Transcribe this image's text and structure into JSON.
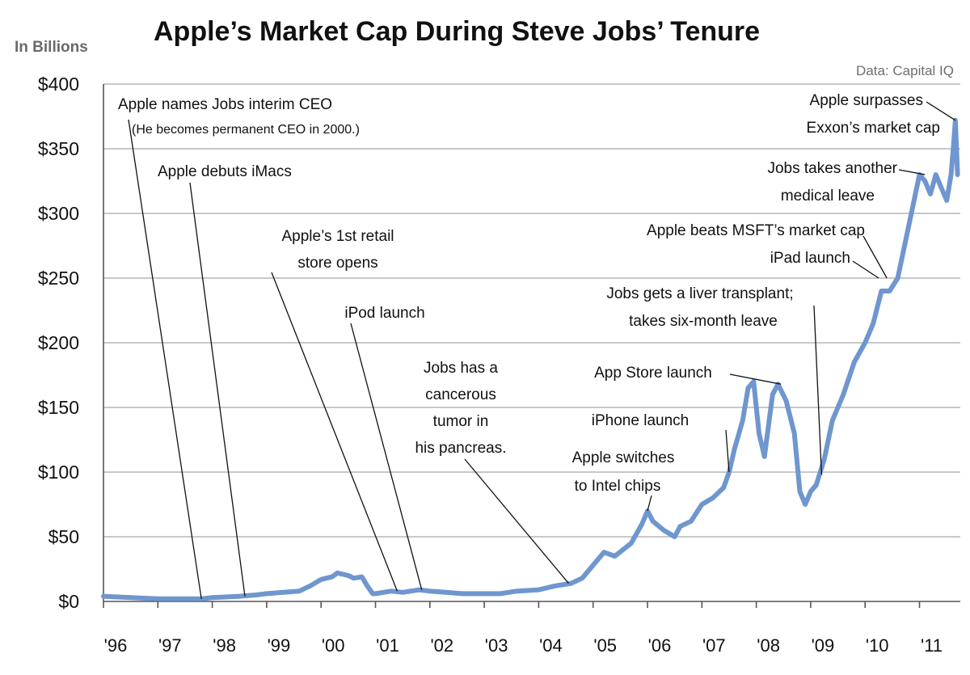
{
  "chart_data": {
    "type": "line",
    "title": "Apple’s Market Cap During Steve Jobs’ Tenure",
    "units_label": "In Billions",
    "source": "Data: Capital IQ",
    "xlabel": "",
    "ylabel": "In Billions",
    "ylim": [
      0,
      400
    ],
    "xlim": [
      1996,
      2011.75
    ],
    "grid": true,
    "y_ticks": [
      {
        "value": 0,
        "label": "$0"
      },
      {
        "value": 50,
        "label": "$50"
      },
      {
        "value": 100,
        "label": "$100"
      },
      {
        "value": 150,
        "label": "$150"
      },
      {
        "value": 200,
        "label": "$200"
      },
      {
        "value": 250,
        "label": "$250"
      },
      {
        "value": 300,
        "label": "$300"
      },
      {
        "value": 350,
        "label": "$350"
      },
      {
        "value": 400,
        "label": "$400"
      }
    ],
    "x_ticks": [
      {
        "value": 1996,
        "label": "'96"
      },
      {
        "value": 1997,
        "label": "'97"
      },
      {
        "value": 1998,
        "label": "'98"
      },
      {
        "value": 1999,
        "label": "'99"
      },
      {
        "value": 2000,
        "label": "'00"
      },
      {
        "value": 2001,
        "label": "'01"
      },
      {
        "value": 2002,
        "label": "'02"
      },
      {
        "value": 2003,
        "label": "'03"
      },
      {
        "value": 2004,
        "label": "'04"
      },
      {
        "value": 2005,
        "label": "'05"
      },
      {
        "value": 2006,
        "label": "'06"
      },
      {
        "value": 2007,
        "label": "'07"
      },
      {
        "value": 2008,
        "label": "'08"
      },
      {
        "value": 2009,
        "label": "'09"
      },
      {
        "value": 2010,
        "label": "'10"
      },
      {
        "value": 2011,
        "label": "'11"
      }
    ],
    "series": [
      {
        "name": "Apple market cap ($B)",
        "color": "#6f96cf",
        "x": [
          1996.0,
          1996.5,
          1997.0,
          1997.5,
          1997.8,
          1998.0,
          1998.5,
          1998.8,
          1999.0,
          1999.3,
          1999.6,
          1999.8,
          2000.0,
          2000.2,
          2000.3,
          2000.5,
          2000.6,
          2000.75,
          2000.85,
          2000.95,
          2001.0,
          2001.3,
          2001.5,
          2001.8,
          2002.0,
          2002.3,
          2002.6,
          2003.0,
          2003.3,
          2003.6,
          2004.0,
          2004.3,
          2004.6,
          2004.8,
          2005.0,
          2005.2,
          2005.4,
          2005.7,
          2005.9,
          2006.0,
          2006.1,
          2006.3,
          2006.5,
          2006.6,
          2006.8,
          2007.0,
          2007.2,
          2007.4,
          2007.5,
          2007.6,
          2007.75,
          2007.85,
          2007.95,
          2008.05,
          2008.15,
          2008.3,
          2008.4,
          2008.55,
          2008.7,
          2008.8,
          2008.9,
          2009.0,
          2009.1,
          2009.25,
          2009.4,
          2009.6,
          2009.8,
          2010.0,
          2010.15,
          2010.3,
          2010.45,
          2010.6,
          2010.75,
          2010.9,
          2011.0,
          2011.1,
          2011.2,
          2011.3,
          2011.4,
          2011.5,
          2011.58,
          2011.62,
          2011.66,
          2011.7
        ],
        "values": [
          4,
          3,
          2,
          2,
          2,
          3,
          4,
          5,
          6,
          7,
          8,
          12,
          17,
          19,
          22,
          20,
          18,
          19,
          12,
          6,
          6,
          8,
          7,
          9,
          8,
          7,
          6,
          6,
          6,
          8,
          9,
          12,
          14,
          18,
          28,
          38,
          35,
          45,
          60,
          70,
          62,
          55,
          50,
          58,
          62,
          75,
          80,
          88,
          100,
          118,
          140,
          165,
          170,
          130,
          112,
          160,
          168,
          155,
          130,
          85,
          75,
          85,
          90,
          110,
          140,
          160,
          185,
          200,
          215,
          240,
          240,
          250,
          280,
          310,
          330,
          325,
          315,
          330,
          320,
          310,
          330,
          350,
          372,
          330
        ]
      }
    ],
    "annotations": [
      {
        "lines": [
          "Apple names Jobs interim CEO"
        ],
        "note": "(He becomes permanent CEO in 2000.)",
        "x": 1997.8,
        "y": 2
      },
      {
        "lines": [
          "Apple debuts iMacs"
        ],
        "x": 1998.6,
        "y": 4
      },
      {
        "lines": [
          "Apple’s 1st retail",
          "store opens"
        ],
        "x": 2001.4,
        "y": 8
      },
      {
        "lines": [
          "iPod launch"
        ],
        "x": 2001.85,
        "y": 9
      },
      {
        "lines": [
          "Jobs has a",
          "cancerous",
          "tumor in",
          "his pancreas."
        ],
        "x": 2004.55,
        "y": 14
      },
      {
        "lines": [
          "Apple switches",
          "to Intel chips"
        ],
        "x": 2006.0,
        "y": 70
      },
      {
        "lines": [
          "iPhone launch"
        ],
        "x": 2007.5,
        "y": 100
      },
      {
        "lines": [
          "App Store launch"
        ],
        "x": 2008.45,
        "y": 168
      },
      {
        "lines": [
          "Jobs gets a liver transplant;",
          "takes six-month leave"
        ],
        "x": 2009.2,
        "y": 98
      },
      {
        "lines": [
          "Apple beats MSFT’s market cap"
        ],
        "x": 2010.4,
        "y": 250
      },
      {
        "lines": [
          "iPad launch"
        ],
        "x": 2010.25,
        "y": 250
      },
      {
        "lines": [
          "Jobs takes another",
          "medical leave"
        ],
        "x": 2011.1,
        "y": 330
      },
      {
        "lines": [
          "Apple surpasses",
          "Exxon’s market cap"
        ],
        "x": 2011.66,
        "y": 372
      }
    ]
  }
}
